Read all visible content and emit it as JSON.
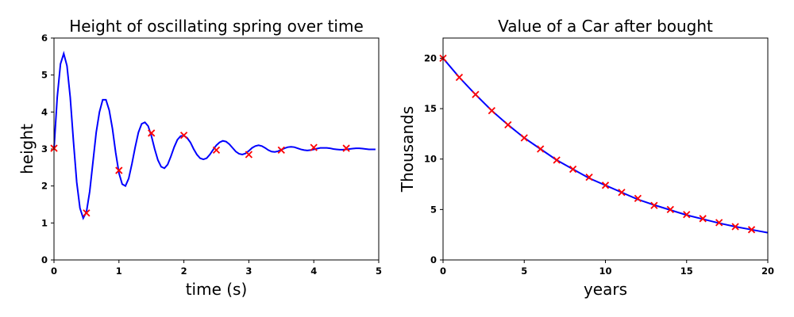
{
  "chart_data": [
    {
      "type": "line",
      "title": "Height of oscillating spring over time",
      "xlabel": "time (s)",
      "ylabel": "height",
      "xlim": [
        0,
        5
      ],
      "ylim": [
        0,
        6
      ],
      "xticks": [
        0,
        1,
        2,
        3,
        4,
        5
      ],
      "yticks": [
        0,
        1,
        2,
        3,
        4,
        5,
        6
      ],
      "grid": false,
      "series": [
        {
          "kind": "line",
          "color": "#0000ff",
          "x": [
            0,
            0.05,
            0.1,
            0.15,
            0.2,
            0.25,
            0.3,
            0.35,
            0.4,
            0.45,
            0.5,
            0.55,
            0.6,
            0.65,
            0.7,
            0.75,
            0.8,
            0.85,
            0.9,
            0.95,
            1.0,
            1.05,
            1.1,
            1.15,
            1.2,
            1.25,
            1.3,
            1.35,
            1.4,
            1.45,
            1.5,
            1.55,
            1.6,
            1.65,
            1.7,
            1.75,
            1.8,
            1.85,
            1.9,
            1.95,
            2.0,
            2.05,
            2.1,
            2.15,
            2.2,
            2.25,
            2.3,
            2.35,
            2.4,
            2.45,
            2.5,
            2.55,
            2.6,
            2.65,
            2.7,
            2.75,
            2.8,
            2.85,
            2.9,
            2.95,
            3.0,
            3.05,
            3.1,
            3.15,
            3.2,
            3.25,
            3.3,
            3.35,
            3.4,
            3.45,
            3.5,
            3.55,
            3.6,
            3.65,
            3.7,
            3.75,
            3.8,
            3.85,
            3.9,
            3.95,
            4.0,
            4.05,
            4.1,
            4.15,
            4.2,
            4.25,
            4.3,
            4.35,
            4.4,
            4.45,
            4.5,
            4.55,
            4.6,
            4.65,
            4.7,
            4.75,
            4.8,
            4.85,
            4.9,
            4.95
          ],
          "y": [
            3.0,
            4.4,
            5.3,
            5.58,
            5.25,
            4.4,
            3.2,
            2.1,
            1.4,
            1.13,
            1.3,
            1.85,
            2.65,
            3.45,
            4.0,
            4.33,
            4.33,
            4.05,
            3.55,
            2.9,
            2.35,
            2.05,
            2.0,
            2.2,
            2.6,
            3.05,
            3.45,
            3.68,
            3.72,
            3.62,
            3.35,
            3.0,
            2.7,
            2.52,
            2.48,
            2.58,
            2.8,
            3.05,
            3.25,
            3.35,
            3.36,
            3.3,
            3.18,
            3.0,
            2.85,
            2.75,
            2.72,
            2.75,
            2.85,
            2.98,
            3.1,
            3.18,
            3.22,
            3.2,
            3.13,
            3.03,
            2.93,
            2.87,
            2.85,
            2.88,
            2.95,
            3.03,
            3.08,
            3.1,
            3.08,
            3.03,
            2.97,
            2.93,
            2.92,
            2.94,
            2.98,
            3.02,
            3.05,
            3.06,
            3.05,
            3.02,
            2.99,
            2.97,
            2.96,
            2.97,
            2.99,
            3.01,
            3.03,
            3.03,
            3.03,
            3.02,
            3.0,
            2.99,
            2.98,
            2.98,
            2.99,
            3.0,
            3.01,
            3.02,
            3.02,
            3.01,
            3.0,
            2.99,
            2.99,
            2.99
          ]
        },
        {
          "kind": "scatter",
          "marker": "x",
          "color": "#ff0000",
          "x": [
            0,
            0.5,
            1.0,
            1.5,
            2.0,
            2.5,
            3.0,
            3.5,
            4.0,
            4.5
          ],
          "y": [
            3.02,
            1.27,
            2.42,
            3.43,
            3.37,
            2.97,
            2.85,
            2.97,
            3.04,
            3.02
          ]
        }
      ]
    },
    {
      "type": "line",
      "title": "Value of a Car after bought",
      "xlabel": "years",
      "ylabel": "Thousands",
      "xlim": [
        0,
        20
      ],
      "ylim": [
        0,
        22
      ],
      "xticks": [
        0,
        5,
        10,
        15,
        20
      ],
      "yticks": [
        0,
        5,
        10,
        15,
        20
      ],
      "grid": false,
      "series": [
        {
          "kind": "line",
          "color": "#0000ff",
          "x": [
            0,
            1,
            2,
            3,
            4,
            5,
            6,
            7,
            8,
            9,
            10,
            11,
            12,
            13,
            14,
            15,
            16,
            17,
            18,
            19,
            20
          ],
          "y": [
            20.0,
            18.1,
            16.4,
            14.8,
            13.4,
            12.1,
            11.0,
            9.9,
            9.0,
            8.1,
            7.4,
            6.7,
            6.0,
            5.45,
            4.95,
            4.45,
            4.05,
            3.65,
            3.3,
            3.0,
            2.7
          ]
        },
        {
          "kind": "scatter",
          "marker": "x",
          "color": "#ff0000",
          "x": [
            0,
            1,
            2,
            3,
            4,
            5,
            6,
            7,
            8,
            9,
            10,
            11,
            12,
            13,
            14,
            15,
            16,
            17,
            18,
            19
          ],
          "y": [
            20.0,
            18.1,
            16.4,
            14.8,
            13.4,
            12.1,
            11.0,
            9.9,
            9.0,
            8.2,
            7.4,
            6.7,
            6.1,
            5.4,
            5.0,
            4.5,
            4.1,
            3.7,
            3.3,
            3.0
          ]
        }
      ]
    }
  ]
}
